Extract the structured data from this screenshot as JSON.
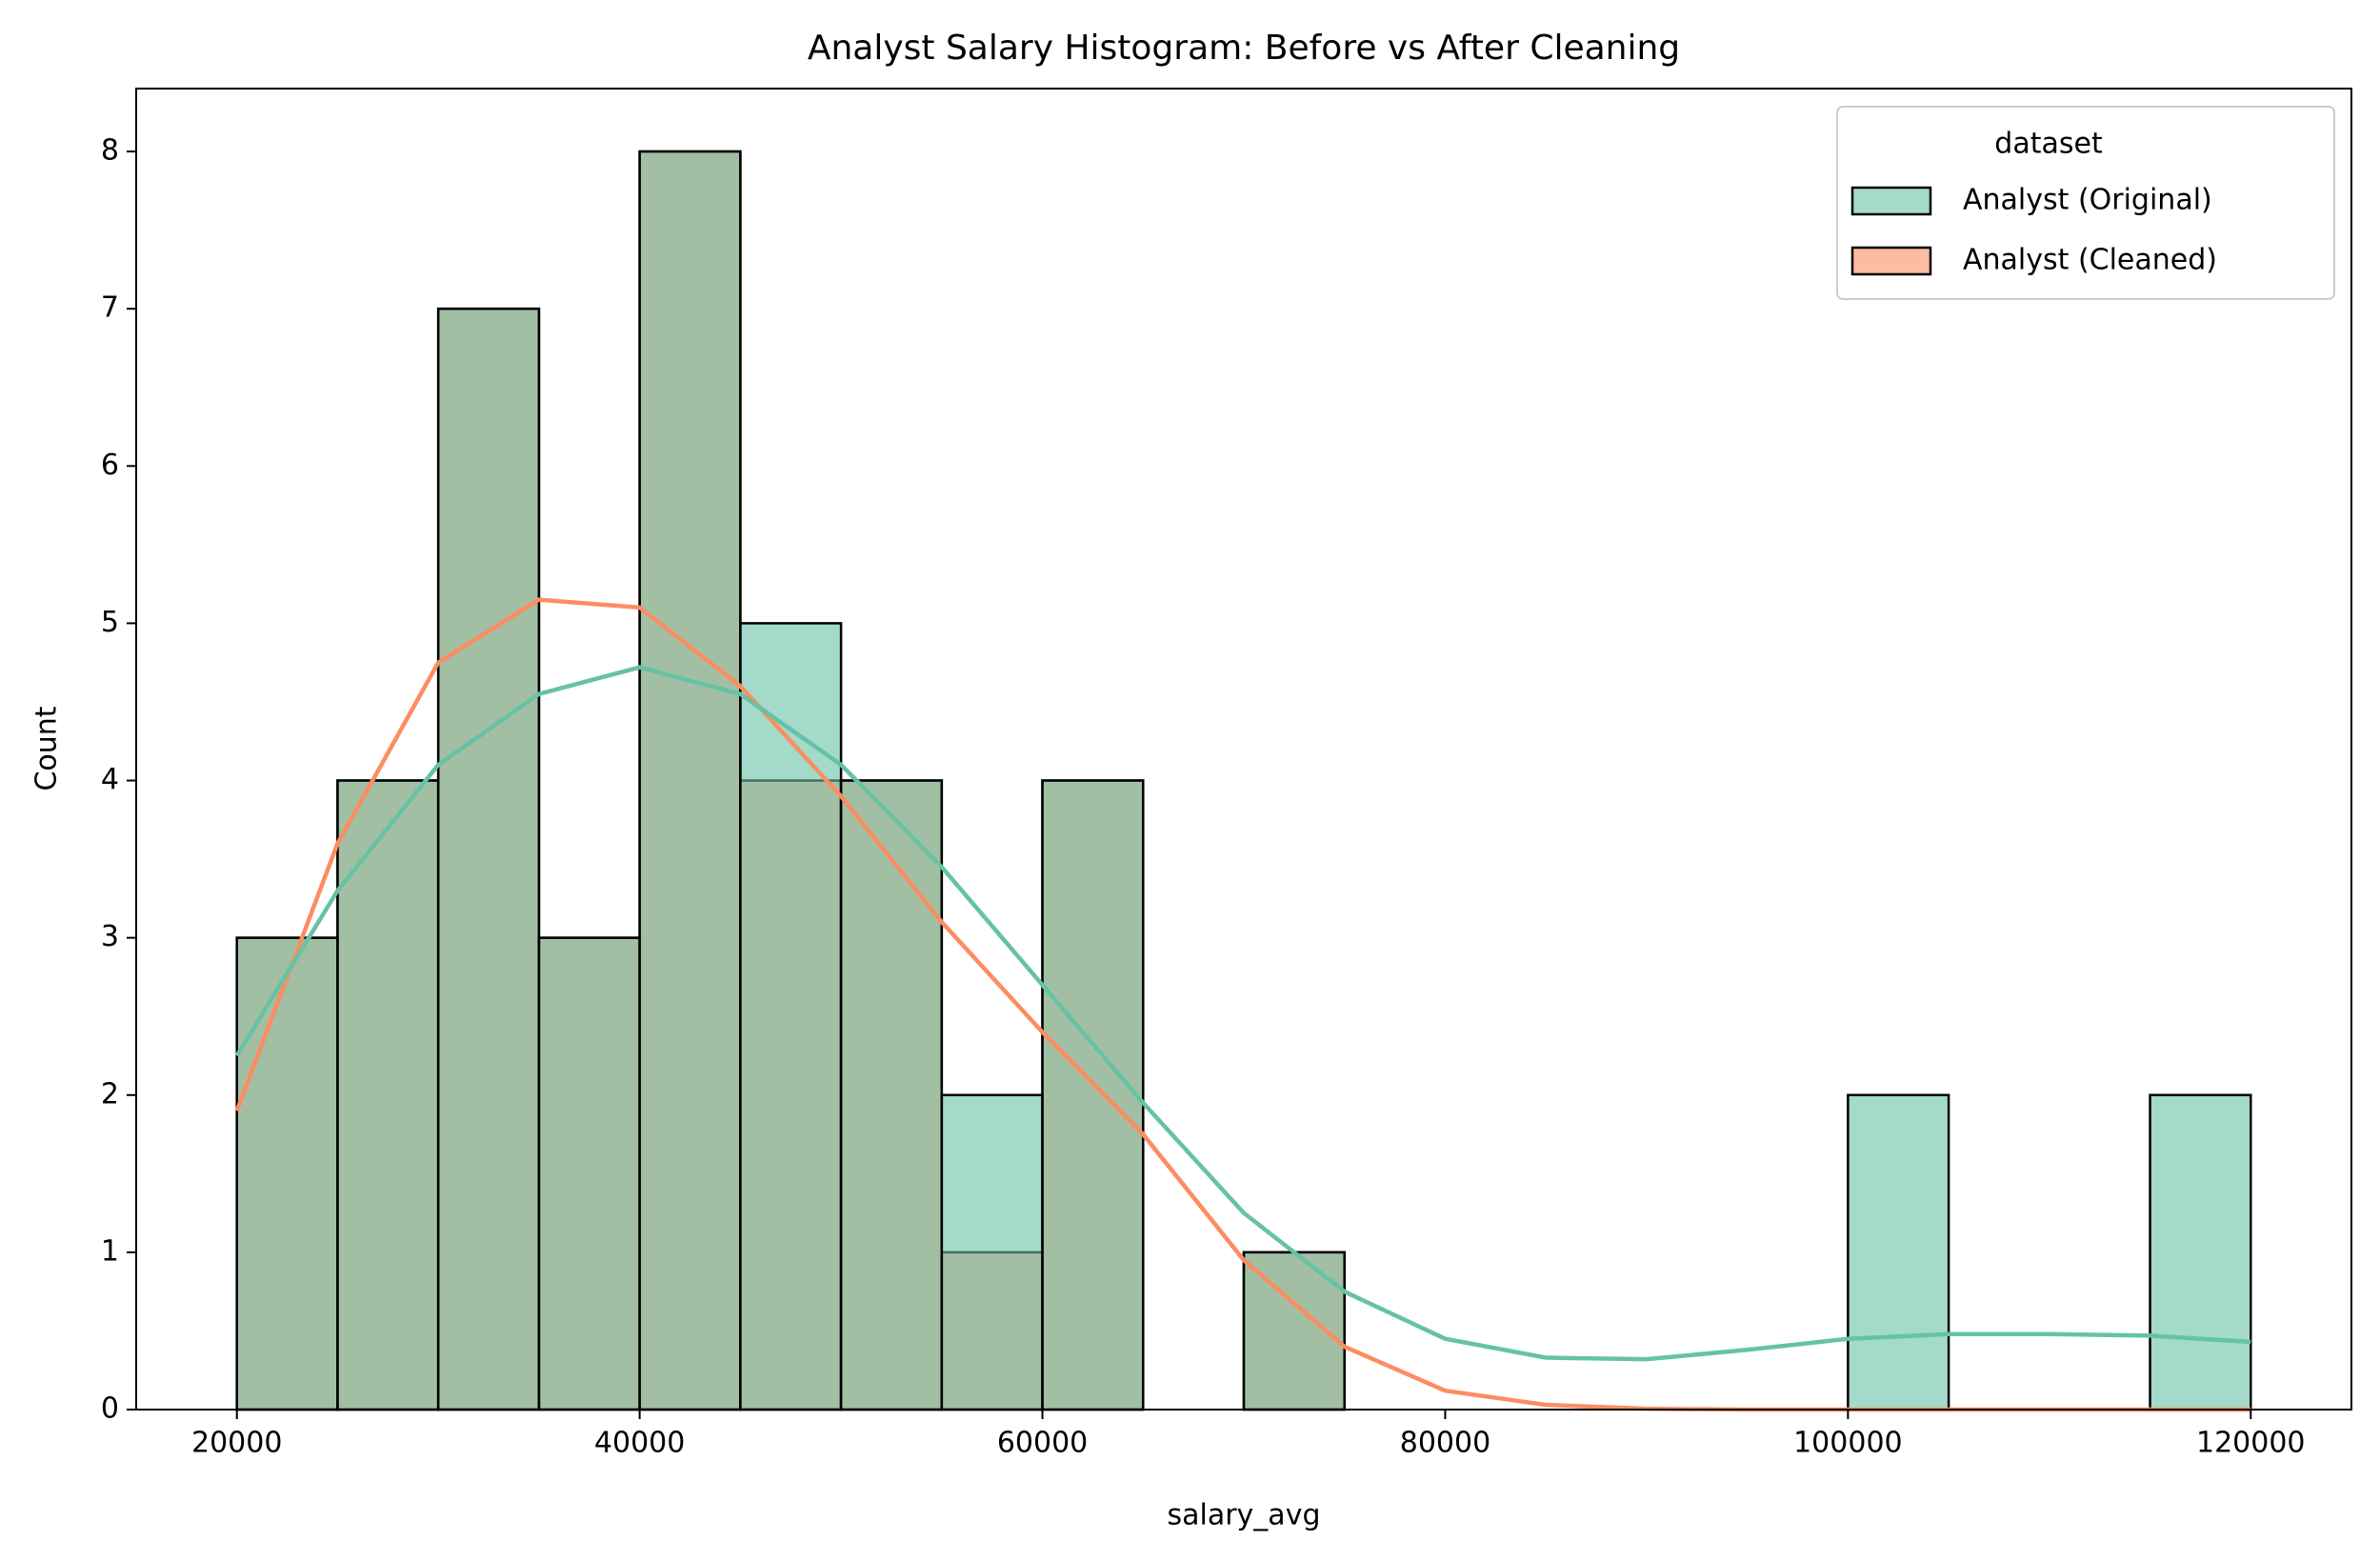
{
  "chart_data": {
    "type": "histogram",
    "title": "Analyst Salary Histogram: Before vs After Cleaning",
    "xlabel": "salary_avg",
    "ylabel": "Count",
    "bins": [
      20000,
      25000,
      30000,
      35000,
      40000,
      45000,
      50000,
      55000,
      60000,
      65000,
      70000,
      75000,
      80000,
      85000,
      90000,
      95000,
      100000,
      105000,
      110000,
      115000,
      120000
    ],
    "series": [
      {
        "name": "Analyst (Original)",
        "color": "#66c2a5",
        "values": [
          3,
          4,
          7,
          3,
          8,
          5,
          4,
          2,
          4,
          0,
          1,
          0,
          0,
          0,
          0,
          0,
          2,
          0,
          0,
          2
        ],
        "kde": {
          "x": [
            20000,
            25000,
            30000,
            35000,
            40000,
            45000,
            50000,
            55000,
            60000,
            65000,
            70000,
            75000,
            80000,
            85000,
            90000,
            95000,
            100000,
            105000,
            110000,
            115000,
            120000
          ],
          "values": [
            2.25,
            3.3,
            4.1,
            4.55,
            4.72,
            4.55,
            4.1,
            3.45,
            2.7,
            1.95,
            1.25,
            0.75,
            0.45,
            0.33,
            0.32,
            0.38,
            0.45,
            0.48,
            0.48,
            0.47,
            0.43
          ]
        }
      },
      {
        "name": "Analyst (Cleaned)",
        "color": "#fc8d62",
        "values": [
          3,
          4,
          7,
          3,
          8,
          4,
          4,
          1,
          4,
          0,
          1,
          0,
          0,
          0,
          0,
          0,
          0,
          0,
          0,
          0
        ],
        "kde": {
          "x": [
            20000,
            25000,
            30000,
            35000,
            40000,
            45000,
            50000,
            55000,
            60000,
            65000,
            70000,
            75000,
            80000,
            85000,
            90000,
            95000,
            100000,
            105000,
            110000,
            115000,
            120000
          ],
          "values": [
            1.9,
            3.6,
            4.75,
            5.15,
            5.1,
            4.6,
            3.9,
            3.1,
            2.4,
            1.75,
            0.95,
            0.4,
            0.12,
            0.03,
            0.005,
            0,
            0,
            0,
            0,
            0,
            0
          ]
        }
      }
    ],
    "draw_order": [
      1,
      0
    ],
    "alpha": 0.6,
    "xlim": [
      15000,
      125000
    ],
    "ylim": [
      0,
      8.4
    ],
    "xticks": [
      20000,
      40000,
      60000,
      80000,
      100000,
      120000
    ],
    "yticks": [
      0,
      1,
      2,
      3,
      4,
      5,
      6,
      7,
      8
    ],
    "legend_title": "dataset",
    "legend": "upper right"
  }
}
